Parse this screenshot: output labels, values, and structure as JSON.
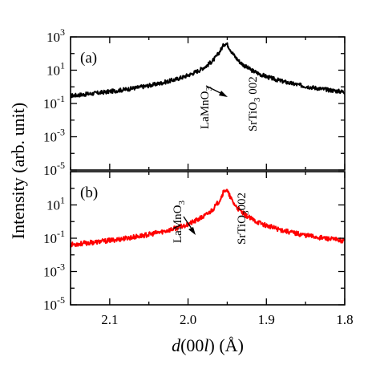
{
  "figure": {
    "ylabel": "Intensity (arb. unit)",
    "xlabel_italic": "d",
    "xlabel_rest": "(00",
    "xlabel_italic_l": "l",
    "xlabel_end": ") (Å)"
  },
  "chart_data": [
    {
      "type": "line",
      "panel_label": "(a)",
      "color": "#000000",
      "xlim": [
        2.15,
        1.8
      ],
      "ylim_log10": [
        -5,
        3
      ],
      "y_scale": "log",
      "x_ticks": [
        2.1,
        2.0,
        1.9,
        1.8
      ],
      "y_tick_exponents": [
        3,
        1,
        -1,
        -3,
        -5
      ],
      "annotations": [
        {
          "base": "LaMnO",
          "sub": "3",
          "rest": "",
          "arrow": true
        },
        {
          "base": "SrTiO",
          "sub": "3",
          "rest": " 002",
          "arrow": false
        }
      ],
      "series": [
        {
          "substrate_peak": {
            "x": 1.952,
            "log10_peak": 2.6,
            "width": 0.0065
          },
          "film_peak": {
            "x": 1.972,
            "log10_peak": -0.5,
            "width": 0.018
          },
          "background_log10": -4.6,
          "fringe_period": 0.0098,
          "noise_amplitude": 0.12
        }
      ]
    },
    {
      "type": "line",
      "panel_label": "(b)",
      "color": "#ff0000",
      "xlim": [
        2.15,
        1.8
      ],
      "ylim_log10": [
        -5,
        3
      ],
      "y_scale": "log",
      "x_ticks": [
        2.1,
        2.0,
        1.9,
        1.8
      ],
      "y_tick_exponents": [
        1,
        -1,
        -3,
        -5
      ],
      "x_tick_labels": [
        "2.1",
        "2.0",
        "1.9",
        "1.8"
      ],
      "annotations": [
        {
          "base": "LaMnO",
          "sub": "3",
          "rest": "",
          "arrow": true
        },
        {
          "base": "SrTiO",
          "sub": "3",
          "rest": "002",
          "arrow": false
        }
      ],
      "series": [
        {
          "substrate_peak": {
            "x": 1.952,
            "log10_peak": 1.9,
            "width": 0.0055
          },
          "film_peak": {
            "x": 1.983,
            "log10_peak": -1.2,
            "width": 0.011
          },
          "background_log10": -4.9,
          "fringe_period": 0,
          "noise_amplitude": 0.14
        }
      ]
    }
  ]
}
